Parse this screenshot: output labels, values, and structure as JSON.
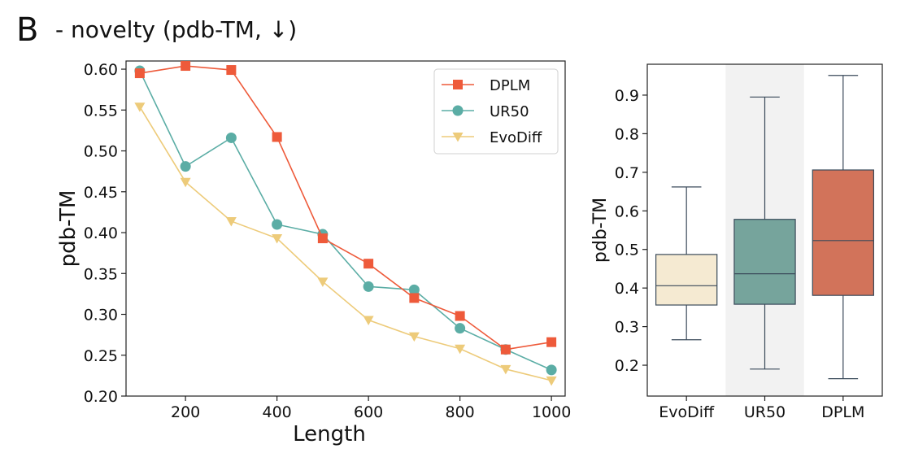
{
  "panel_letter": "B",
  "panel_title": "- novelty (pdb-TM, ↓)",
  "colors": {
    "dplm": "#EE5A3A",
    "ur50": "#5BADA5",
    "evodiff": "#EDCB7A",
    "box_evodiff": "#F5EAD2",
    "box_ur50": "#76A49C",
    "box_dplm": "#D2735A",
    "whisker": "#3A4A5A",
    "highlight": "#F2F2F2"
  },
  "chart_data": [
    {
      "type": "line",
      "xlabel": "Length",
      "ylabel": "pdb-TM",
      "xlim": [
        70,
        1030
      ],
      "ylim": [
        0.2,
        0.61
      ],
      "x_ticks": [
        200,
        400,
        600,
        800,
        1000
      ],
      "y_ticks": [
        0.2,
        0.25,
        0.3,
        0.35,
        0.4,
        0.45,
        0.5,
        0.55,
        0.6
      ],
      "x": [
        100,
        200,
        300,
        400,
        500,
        600,
        700,
        800,
        900,
        1000
      ],
      "legend_position": "top-right",
      "series": [
        {
          "name": "DPLM",
          "marker": "square",
          "color_key": "dplm",
          "values": [
            0.595,
            0.604,
            0.599,
            0.517,
            0.393,
            0.362,
            0.32,
            0.298,
            0.257,
            0.266
          ]
        },
        {
          "name": "UR50",
          "marker": "circle",
          "color_key": "ur50",
          "values": [
            0.598,
            0.481,
            0.516,
            0.41,
            0.398,
            0.334,
            0.33,
            0.283,
            0.257,
            0.232
          ]
        },
        {
          "name": "EvoDiff",
          "marker": "triangle-down",
          "color_key": "evodiff",
          "values": [
            0.554,
            0.462,
            0.414,
            0.393,
            0.34,
            0.293,
            0.273,
            0.258,
            0.233,
            0.219
          ]
        }
      ]
    },
    {
      "type": "box",
      "ylabel": "pdb-TM",
      "ylim": [
        0.12,
        0.98
      ],
      "y_ticks": [
        0.2,
        0.3,
        0.4,
        0.5,
        0.6,
        0.7,
        0.8,
        0.9
      ],
      "highlighted_category": "UR50",
      "boxes": [
        {
          "category": "EvoDiff",
          "color_key": "box_evodiff",
          "whisker_low": 0.266,
          "q1": 0.356,
          "median": 0.406,
          "q3": 0.487,
          "whisker_high": 0.662
        },
        {
          "category": "UR50",
          "color_key": "box_ur50",
          "whisker_low": 0.19,
          "q1": 0.358,
          "median": 0.437,
          "q3": 0.578,
          "whisker_high": 0.895
        },
        {
          "category": "DPLM",
          "color_key": "box_dplm",
          "whisker_low": 0.165,
          "q1": 0.381,
          "median": 0.523,
          "q3": 0.706,
          "whisker_high": 0.951
        }
      ]
    }
  ]
}
